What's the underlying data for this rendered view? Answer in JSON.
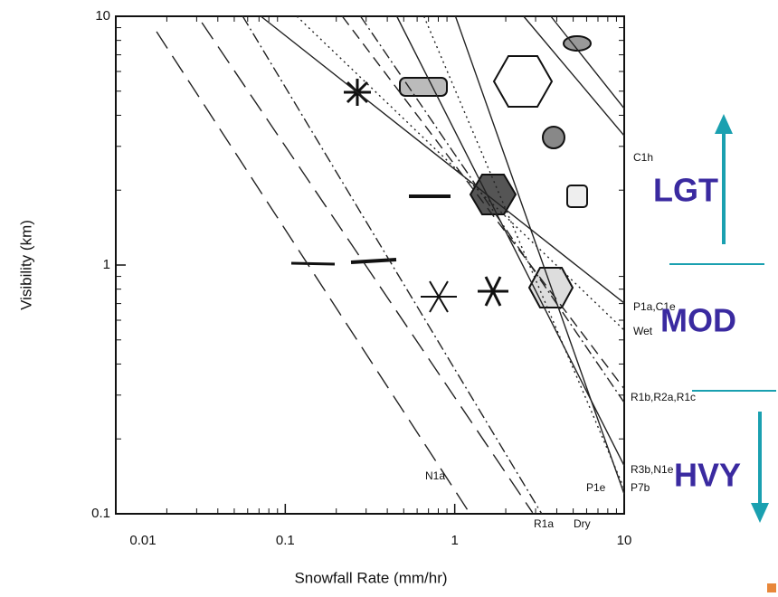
{
  "chart_data": {
    "type": "line",
    "x_label": "Snowfall Rate (mm/hr)",
    "y_label": "Visibility (km)",
    "log_x": true,
    "log_y": true,
    "xlim": [
      0.01,
      10
    ],
    "xticks": [
      0.01,
      0.1,
      1,
      10
    ],
    "ylim": [
      0.1,
      10
    ],
    "yticks": [
      0.1,
      1,
      10
    ],
    "color": "#222222",
    "series": [
      {
        "dash": "longdash",
        "x": [
          0.0174,
          1.22
        ],
        "values": [
          8.67,
          0.101
        ]
      },
      {
        "dash": "longdash",
        "x": [
          0.0322,
          2.88
        ],
        "values": [
          9.43,
          0.101
        ]
      },
      {
        "dash": "dashdot",
        "x": [
          0.0561,
          3.26
        ],
        "values": [
          10,
          0.1
        ]
      },
      {
        "dash": "solid",
        "x": [
          0.0718,
          10
        ],
        "values": [
          10,
          0.703
        ]
      },
      {
        "dash": "dotted",
        "x": [
          0.117,
          10
        ],
        "values": [
          10,
          0.547
        ]
      },
      {
        "dash": "dashed",
        "x": [
          0.217,
          10
        ],
        "values": [
          10,
          0.318
        ]
      },
      {
        "dash": "dashdot",
        "x": [
          0.278,
          10
        ],
        "values": [
          10,
          0.28
        ]
      },
      {
        "dash": "solid",
        "x": [
          0.455,
          10
        ],
        "values": [
          10,
          0.156
        ]
      },
      {
        "dash": "dotted",
        "x": [
          0.658,
          10
        ],
        "values": [
          10,
          0.126
        ]
      },
      {
        "dash": "solid",
        "x": [
          1.01,
          10
        ],
        "values": [
          10,
          0.12
        ]
      },
      {
        "dash": "solid",
        "x": [
          2.55,
          10
        ],
        "values": [
          10,
          3.31
        ]
      },
      {
        "dash": "solid",
        "x": [
          3.69,
          10
        ],
        "values": [
          10,
          4.26
        ]
      }
    ],
    "annotations": [
      "C1h",
      "P1a,C1e",
      "Wet",
      "R1b,R2a,R1c",
      "R3b,N1e",
      "P7b",
      "N1a",
      "P1e",
      "R1a",
      "Dry"
    ],
    "intensity_labels": [
      "LGT",
      "MOD",
      "HVY"
    ]
  }
}
